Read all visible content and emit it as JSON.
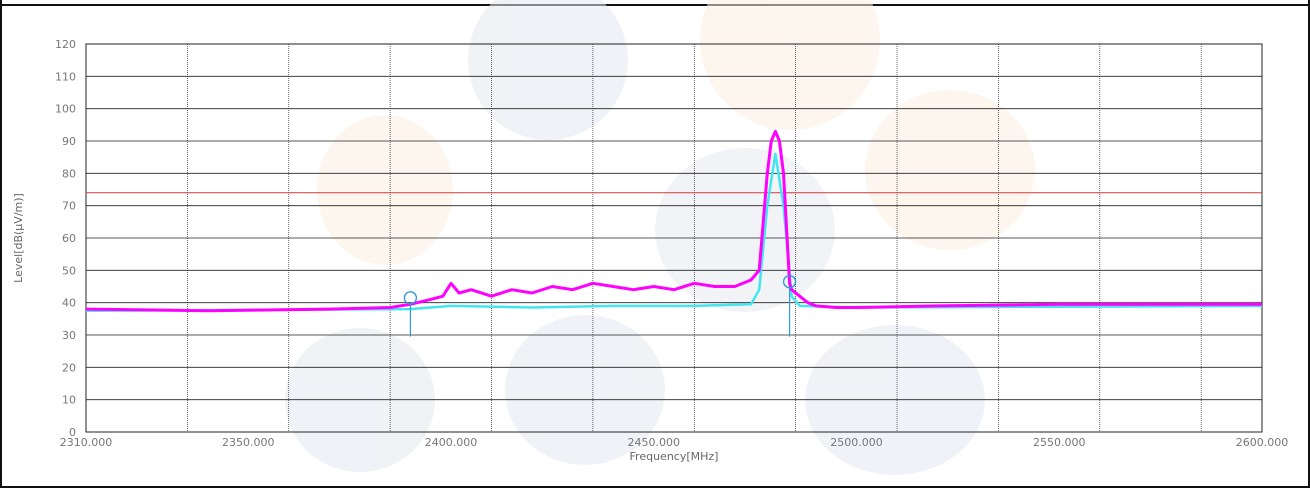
{
  "chart_data": {
    "type": "line",
    "xlabel": "Frequency[MHz]",
    "ylabel": "Level[dB(μV/m)]",
    "xlim": [
      2310,
      2600
    ],
    "ylim": [
      0,
      120
    ],
    "x_ticks": [
      2310,
      2350,
      2400,
      2450,
      2500,
      2550,
      2600
    ],
    "x_tick_labels": [
      "2310.000",
      "2350.000",
      "2400.000",
      "2450.000",
      "2500.000",
      "2550.000",
      "2600.000"
    ],
    "y_ticks": [
      0,
      10,
      20,
      30,
      40,
      50,
      60,
      70,
      80,
      90,
      100,
      110,
      120
    ],
    "y_tick_labels": [
      "0",
      "10",
      "20",
      "30",
      "40",
      "50",
      "60",
      "70",
      "80",
      "90",
      "100",
      "110",
      "120"
    ],
    "limit_line": {
      "y": 74,
      "color": "#d23a3a"
    },
    "series": [
      {
        "color": "#ff00ff",
        "x": [
          2310,
          2340,
          2370,
          2385,
          2390,
          2395,
          2398,
          2400,
          2402,
          2405,
          2410,
          2415,
          2420,
          2425,
          2430,
          2435,
          2440,
          2445,
          2450,
          2455,
          2460,
          2465,
          2470,
          2474,
          2476,
          2478,
          2479,
          2480,
          2481,
          2482,
          2483.5,
          2484,
          2486,
          2488,
          2490,
          2495,
          2500,
          2520,
          2550,
          2580,
          2600
        ],
        "y": [
          38,
          37.5,
          38,
          38.5,
          39.5,
          41,
          42,
          46,
          43,
          44,
          42,
          44,
          43,
          45,
          44,
          46,
          45,
          44,
          45,
          44,
          46,
          45,
          45,
          47,
          50,
          80,
          90,
          93,
          90,
          80,
          46,
          44,
          42,
          40,
          39,
          38.5,
          38.5,
          39,
          39.5,
          39.5,
          39.5
        ]
      },
      {
        "color": "#43e6f0",
        "x": [
          2310,
          2390,
          2400,
          2420,
          2440,
          2460,
          2474,
          2476,
          2478,
          2480,
          2482,
          2484,
          2486,
          2500,
          2600
        ],
        "y": [
          37.5,
          38,
          39,
          38.5,
          39,
          39,
          39.5,
          44,
          70,
          86,
          70,
          42,
          39,
          38.5,
          39
        ]
      }
    ],
    "markers": [
      {
        "x": 2390,
        "y": 41.5,
        "color": "#2f9bd9"
      },
      {
        "x": 2483.5,
        "y": 46.5,
        "color": "#2f9bd9"
      }
    ],
    "grid": true
  }
}
